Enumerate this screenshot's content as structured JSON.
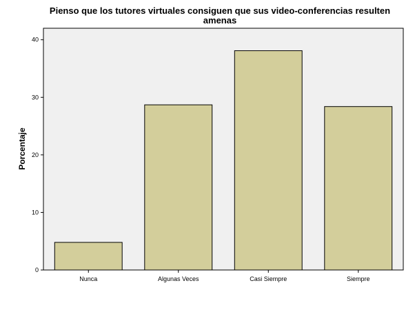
{
  "chart_data": {
    "type": "bar",
    "title_line1": "Pienso que los tutores virtuales consiguen que sus video-conferencias resulten",
    "title_line2": "amenas",
    "xlabel": "",
    "ylabel": "Porcentaje",
    "categories": [
      "Nunca",
      "Algunas Veces",
      "Casi Siempre",
      "Siempre"
    ],
    "values": [
      4.8,
      28.7,
      38.1,
      28.4
    ],
    "ylim": [
      0,
      42
    ],
    "yticks": [
      0,
      10,
      20,
      30,
      40
    ],
    "grid": false,
    "legend": "none",
    "colors": {
      "bar_fill": "#d3ce9b",
      "bar_stroke": "#000000",
      "plot_background": "#f0f0f0",
      "axis": "#000000"
    }
  }
}
